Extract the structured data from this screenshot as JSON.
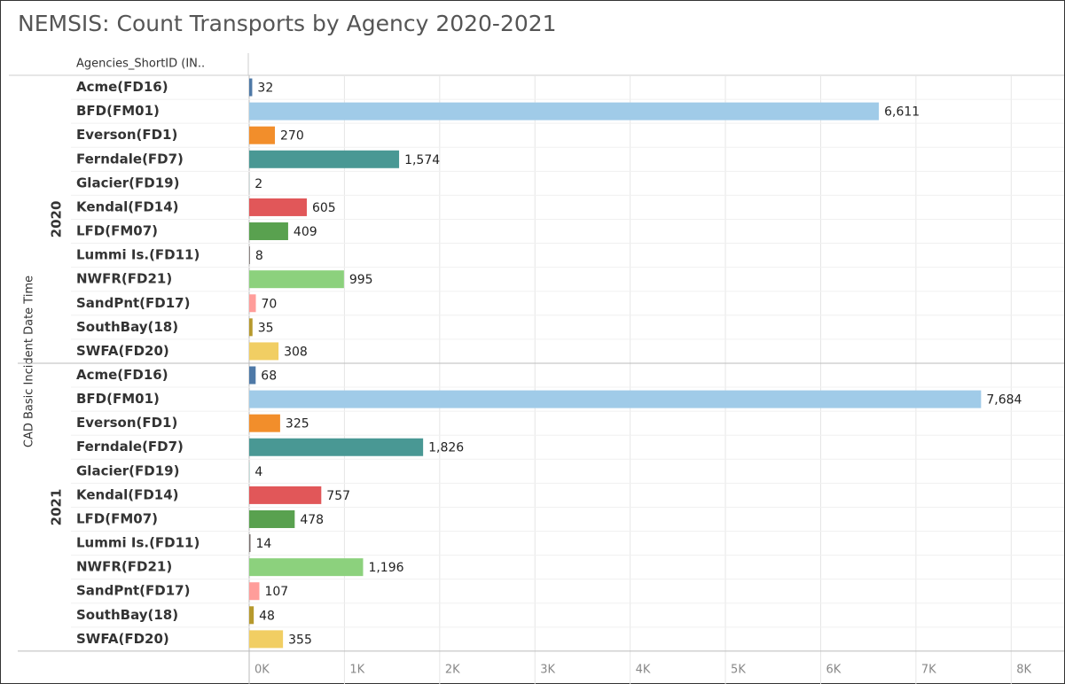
{
  "chart_data": {
    "type": "bar",
    "title": "NEMSIS: Count Transports by Agency 2020-2021",
    "column_header": "Agencies_ShortID (IN..",
    "y_axis_label": "CAD Basic Incident Date Time",
    "categories": [
      "Acme(FD16)",
      "BFD(FM01)",
      "Everson(FD1)",
      "Ferndale(FD7)",
      "Glacier(FD19)",
      "Kendal(FD14)",
      "LFD(FM07)",
      "Lummi Is.(FD11)",
      "NWFR(FD21)",
      "SandPnt(FD17)",
      "SouthBay(18)",
      "SWFA(FD20)"
    ],
    "colors": [
      "#4e79a7",
      "#a0cbe8",
      "#f28e2b",
      "#499894",
      "#86bcb6",
      "#e15759",
      "#59a14f",
      "#79706e",
      "#8cd17d",
      "#ff9d9a",
      "#b6992d",
      "#f1ce63"
    ],
    "groups": [
      {
        "name": "2020",
        "values": [
          32,
          6611,
          270,
          1574,
          2,
          605,
          409,
          8,
          995,
          70,
          35,
          308
        ],
        "value_labels": [
          "32",
          "6,611",
          "270",
          "1,574",
          "2",
          "605",
          "409",
          "8",
          "995",
          "70",
          "35",
          "308"
        ]
      },
      {
        "name": "2021",
        "values": [
          68,
          7684,
          325,
          1826,
          4,
          757,
          478,
          14,
          1196,
          107,
          48,
          355
        ],
        "value_labels": [
          "68",
          "7,684",
          "325",
          "1,826",
          "4",
          "757",
          "478",
          "14",
          "1,196",
          "107",
          "48",
          "355"
        ]
      }
    ],
    "xlim": [
      0,
      8500
    ],
    "xticks": [
      {
        "value": 0,
        "label": "0K"
      },
      {
        "value": 1000,
        "label": "1K"
      },
      {
        "value": 2000,
        "label": "2K"
      },
      {
        "value": 3000,
        "label": "3K"
      },
      {
        "value": 4000,
        "label": "4K"
      },
      {
        "value": 5000,
        "label": "5K"
      },
      {
        "value": 6000,
        "label": "6K"
      },
      {
        "value": 7000,
        "label": "7K"
      },
      {
        "value": 8000,
        "label": "8K"
      }
    ],
    "grid": true
  }
}
